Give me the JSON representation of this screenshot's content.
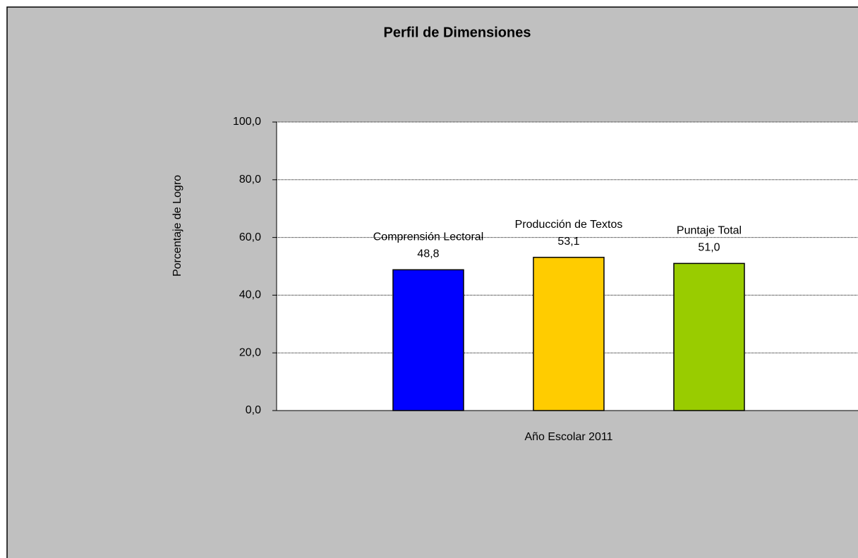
{
  "chart_data": {
    "type": "bar",
    "title": "Perfil de Dimensiones",
    "y_label": "Porcentaje de Logro",
    "categories": [
      "Año Escolar 2011"
    ],
    "series": [
      {
        "name": "Comprensión Lectoral",
        "color": "#0000ff",
        "values": [
          48.8
        ],
        "value_labels": [
          "48,8"
        ]
      },
      {
        "name": "Producción de Textos",
        "color": "#ffcc00",
        "values": [
          53.1
        ],
        "value_labels": [
          "53,1"
        ]
      },
      {
        "name": "Puntaje Total",
        "color": "#99cc00",
        "values": [
          51.0
        ],
        "value_labels": [
          "51,0"
        ]
      }
    ],
    "ylim": [
      0,
      100
    ],
    "yticks": [
      {
        "value": 0,
        "label": "0,0"
      },
      {
        "value": 20,
        "label": "20,0"
      },
      {
        "value": 40,
        "label": "40,0"
      },
      {
        "value": 60,
        "label": "60,0"
      },
      {
        "value": 80,
        "label": "80,0"
      },
      {
        "value": 100,
        "label": "100,0"
      }
    ],
    "grid": true
  }
}
